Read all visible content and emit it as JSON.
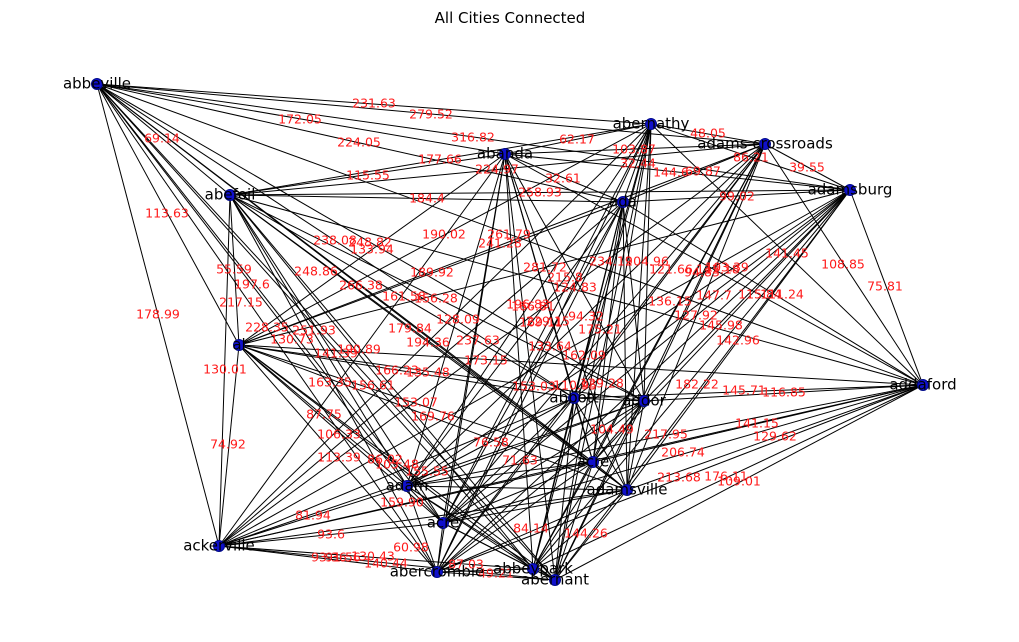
{
  "title": "All Cities Connected",
  "colors": {
    "node": "#1010cc",
    "edge": "#000000",
    "edge_label": "#ff1a1a",
    "background": "#ffffff"
  },
  "nodes": [
    {
      "id": "abbeville",
      "label": "abbeville"
    },
    {
      "id": "abernathy",
      "label": "abernathy"
    },
    {
      "id": "adams crossroads",
      "label": "adams crossroads"
    },
    {
      "id": "abanda",
      "label": "abanda"
    },
    {
      "id": "ada",
      "label": "ada"
    },
    {
      "id": "adamsburg",
      "label": "adamsburg"
    },
    {
      "id": "abefoil",
      "label": "abefoil"
    },
    {
      "id": "al",
      "label": "al"
    },
    {
      "id": "abbott",
      "label": "abbott"
    },
    {
      "id": "addor",
      "label": "addor"
    },
    {
      "id": "addaford",
      "label": "addaford"
    },
    {
      "id": "adamsville",
      "label": "adamsville"
    },
    {
      "id": "acre",
      "label": "acre"
    },
    {
      "id": "adam",
      "label": "adam"
    },
    {
      "id": "acre2",
      "label": "acre"
    },
    {
      "id": "ackerville",
      "label": "ackerville"
    },
    {
      "id": "abercrombie",
      "label": "abercrombie"
    },
    {
      "id": "abernant",
      "label": "abernant"
    },
    {
      "id": "abbeypark",
      "label": "abbeypark"
    }
  ],
  "edge_labels": [
    "231.63",
    "279.52",
    "172.05",
    "224.05",
    "316.82",
    "62.17",
    "48.05",
    "69.14",
    "177.66",
    "224.97",
    "103.87",
    "86.21",
    "39.55",
    "115.55",
    "184.4",
    "258.93",
    "32.61",
    "32.44",
    "144.6",
    "69.87",
    "99.02",
    "113.63",
    "190.02",
    "261.79",
    "238.08",
    "248.82",
    "133.94",
    "241.28",
    "108.85",
    "75.81",
    "141.45",
    "55.59",
    "197.6",
    "248.86",
    "266.38",
    "189.92",
    "281.72",
    "215.8",
    "124.83",
    "234.19",
    "204.96",
    "121.66",
    "94.83",
    "112.18",
    "103.39",
    "217.15",
    "161.58",
    "156.28",
    "196.83",
    "166.81",
    "229.15",
    "136.15",
    "147.7",
    "115.84",
    "111.24",
    "178.99",
    "228.35",
    "251.93",
    "179.84",
    "128.09",
    "169.11",
    "94.32",
    "175.21",
    "127.92",
    "145.98",
    "130.73",
    "194.36",
    "237.63",
    "133.64",
    "162.09",
    "142.96",
    "190.89",
    "141.39",
    "173.15",
    "130.01",
    "166.23",
    "135.48",
    "182.22",
    "145.71",
    "116.85",
    "163.35",
    "156.61",
    "153.03",
    "110.95",
    "129.28",
    "87.75",
    "153.07",
    "169.76",
    "104.49",
    "141.15",
    "129.62",
    "106.33",
    "76.58",
    "217.95",
    "74.92",
    "113.39",
    "86.02",
    "71.63",
    "206.74",
    "213.68",
    "176.11",
    "109.01",
    "105.48",
    "155.55",
    "159.90",
    "84.14",
    "144.26",
    "81.94",
    "93.6",
    "93.36",
    "87.03",
    "60.98",
    "91.56",
    "130.43",
    "140.44",
    "49.21"
  ]
}
